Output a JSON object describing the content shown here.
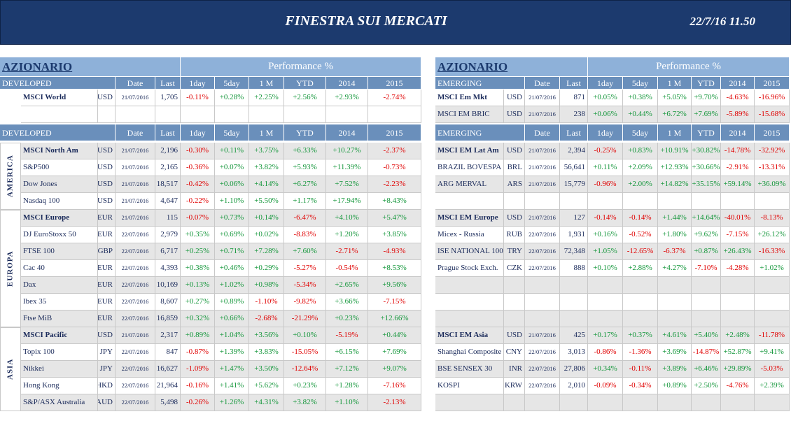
{
  "header": {
    "title": "FINESTRA SUI MERCATI",
    "timestamp": "22/7/16 11.50"
  },
  "left": {
    "title": "AZIONARIO",
    "perf_title": "Performance %",
    "columns": [
      "Date",
      "Last",
      "1day",
      "5day",
      "1 M",
      "YTD",
      "2014",
      "2015"
    ],
    "top": {
      "label": "DEVELOPED",
      "rows": [
        [
          "MSCI World",
          "USD",
          "21/07/2016",
          "1,705",
          "-0.11%",
          "+0.28%",
          "+2.25%",
          "+2.56%",
          "+2.93%",
          "-2.74%"
        ]
      ]
    },
    "main": {
      "label": "DEVELOPED",
      "groups": [
        {
          "region": "AMERICA",
          "rows": [
            [
              "MSCI North Am",
              "USD",
              "21/07/2016",
              "2,196",
              "-0.30%",
              "+0.11%",
              "+3.75%",
              "+6.33%",
              "+10.27%",
              "-2.37%"
            ],
            [
              "S&P500",
              "USD",
              "21/07/2016",
              "2,165",
              "-0.36%",
              "+0.07%",
              "+3.82%",
              "+5.93%",
              "+11.39%",
              "-0.73%"
            ],
            [
              "Dow Jones",
              "USD",
              "21/07/2016",
              "18,517",
              "-0.42%",
              "+0.06%",
              "+4.14%",
              "+6.27%",
              "+7.52%",
              "-2.23%"
            ],
            [
              "Nasdaq 100",
              "USD",
              "21/07/2016",
              "4,647",
              "-0.22%",
              "+1.10%",
              "+5.50%",
              "+1.17%",
              "+17.94%",
              "+8.43%"
            ]
          ]
        },
        {
          "region": "EUROPA",
          "rows": [
            [
              "MSCI Europe",
              "EUR",
              "21/07/2016",
              "115",
              "-0.07%",
              "+0.73%",
              "+0.14%",
              "-6.47%",
              "+4.10%",
              "+5.47%"
            ],
            [
              "DJ EuroStoxx 50",
              "EUR",
              "22/07/2016",
              "2,979",
              "+0.35%",
              "+0.69%",
              "+0.02%",
              "-8.83%",
              "+1.20%",
              "+3.85%"
            ],
            [
              "FTSE 100",
              "GBP",
              "22/07/2016",
              "6,717",
              "+0.25%",
              "+0.71%",
              "+7.28%",
              "+7.60%",
              "-2.71%",
              "-4.93%"
            ],
            [
              "Cac 40",
              "EUR",
              "22/07/2016",
              "4,393",
              "+0.38%",
              "+0.46%",
              "+0.29%",
              "-5.27%",
              "-0.54%",
              "+8.53%"
            ],
            [
              "Dax",
              "EUR",
              "22/07/2016",
              "10,169",
              "+0.13%",
              "+1.02%",
              "+0.98%",
              "-5.34%",
              "+2.65%",
              "+9.56%"
            ],
            [
              "Ibex 35",
              "EUR",
              "22/07/2016",
              "8,607",
              "+0.27%",
              "+0.89%",
              "-1.10%",
              "-9.82%",
              "+3.66%",
              "-7.15%"
            ],
            [
              "Ftse MiB",
              "EUR",
              "22/07/2016",
              "16,859",
              "+0.32%",
              "+0.66%",
              "-2.68%",
              "-21.29%",
              "+0.23%",
              "+12.66%"
            ]
          ]
        },
        {
          "region": "ASIA",
          "rows": [
            [
              "MSCI Pacific",
              "USD",
              "21/07/2016",
              "2,317",
              "+0.89%",
              "+1.04%",
              "+3.56%",
              "+0.10%",
              "-5.19%",
              "+0.44%"
            ],
            [
              "Topix 100",
              "JPY",
              "22/07/2016",
              "847",
              "-0.87%",
              "+1.39%",
              "+3.83%",
              "-15.05%",
              "+6.15%",
              "+7.69%"
            ],
            [
              "Nikkei",
              "JPY",
              "22/07/2016",
              "16,627",
              "-1.09%",
              "+1.47%",
              "+3.50%",
              "-12.64%",
              "+7.12%",
              "+9.07%"
            ],
            [
              "Hong Kong",
              "HKD",
              "22/07/2016",
              "21,964",
              "-0.16%",
              "+1.41%",
              "+5.62%",
              "+0.23%",
              "+1.28%",
              "-7.16%"
            ],
            [
              "S&P/ASX Australia",
              "AUD",
              "22/07/2016",
              "5,498",
              "-0.26%",
              "+1.26%",
              "+4.31%",
              "+3.82%",
              "+1.10%",
              "-2.13%"
            ]
          ]
        }
      ]
    }
  },
  "right": {
    "title": "AZIONARIO",
    "perf_title": "Performance %",
    "columns": [
      "Date",
      "Last",
      "1day",
      "5day",
      "1 M",
      "YTD",
      "2014",
      "2015"
    ],
    "top": {
      "label": "EMERGING",
      "rows": [
        [
          "MSCI Em Mkt",
          "USD",
          "21/07/2016",
          "871",
          "+0.05%",
          "+0.38%",
          "+5.05%",
          "+9.70%",
          "-4.63%",
          "-16.96%"
        ],
        [
          "MSCI EM BRIC",
          "USD",
          "21/07/2016",
          "238",
          "+0.06%",
          "+0.44%",
          "+6.72%",
          "+7.69%",
          "-5.89%",
          "-15.68%"
        ]
      ]
    },
    "main": {
      "label": "EMERGING",
      "groups": [
        {
          "rows": [
            [
              "MSCI EM Lat Am",
              "USD",
              "21/07/2016",
              "2,394",
              "-0.25%",
              "+0.83%",
              "+10.91%",
              "+30.82%",
              "-14.78%",
              "-32.92%"
            ],
            [
              "BRAZIL BOVESPA",
              "BRL",
              "21/07/2016",
              "56,641",
              "+0.11%",
              "+2.09%",
              "+12.93%",
              "+30.66%",
              "-2.91%",
              "-13.31%"
            ],
            [
              "ARG MERVAL",
              "ARS",
              "21/07/2016",
              "15,779",
              "-0.96%",
              "+2.00%",
              "+14.82%",
              "+35.15%",
              "+59.14%",
              "+36.09%"
            ]
          ]
        },
        {
          "rows": [
            [
              "MSCI EM Europe",
              "USD",
              "21/07/2016",
              "127",
              "-0.14%",
              "-0.14%",
              "+1.44%",
              "+14.64%",
              "-40.01%",
              "-8.13%"
            ],
            [
              "Micex - Russia",
              "RUB",
              "22/07/2016",
              "1,931",
              "+0.16%",
              "-0.52%",
              "+1.80%",
              "+9.62%",
              "-7.15%",
              "+26.12%"
            ],
            [
              "ISE NATIONAL 100",
              "TRY",
              "22/07/2016",
              "72,348",
              "+1.05%",
              "-12.65%",
              "-6.37%",
              "+0.87%",
              "+26.43%",
              "-16.33%"
            ],
            [
              "Prague Stock Exch.",
              "CZK",
              "22/07/2016",
              "888",
              "+0.10%",
              "+2.88%",
              "+4.27%",
              "-7.10%",
              "-4.28%",
              "+1.02%"
            ]
          ]
        },
        {
          "rows": [
            [
              "MSCI EM Asia",
              "USD",
              "21/07/2016",
              "425",
              "+0.17%",
              "+0.37%",
              "+4.61%",
              "+5.40%",
              "+2.48%",
              "-11.78%"
            ],
            [
              "Shanghai Composite",
              "CNY",
              "22/07/2016",
              "3,013",
              "-0.86%",
              "-1.36%",
              "+3.69%",
              "-14.87%",
              "+52.87%",
              "+9.41%"
            ],
            [
              "BSE SENSEX 30",
              "INR",
              "22/07/2016",
              "27,806",
              "+0.34%",
              "-0.11%",
              "+3.89%",
              "+6.46%",
              "+29.89%",
              "-5.03%"
            ],
            [
              "KOSPI",
              "KRW",
              "22/07/2016",
              "2,010",
              "-0.09%",
              "-0.34%",
              "+0.89%",
              "+2.50%",
              "-4.76%",
              "+2.39%"
            ]
          ]
        }
      ]
    }
  }
}
